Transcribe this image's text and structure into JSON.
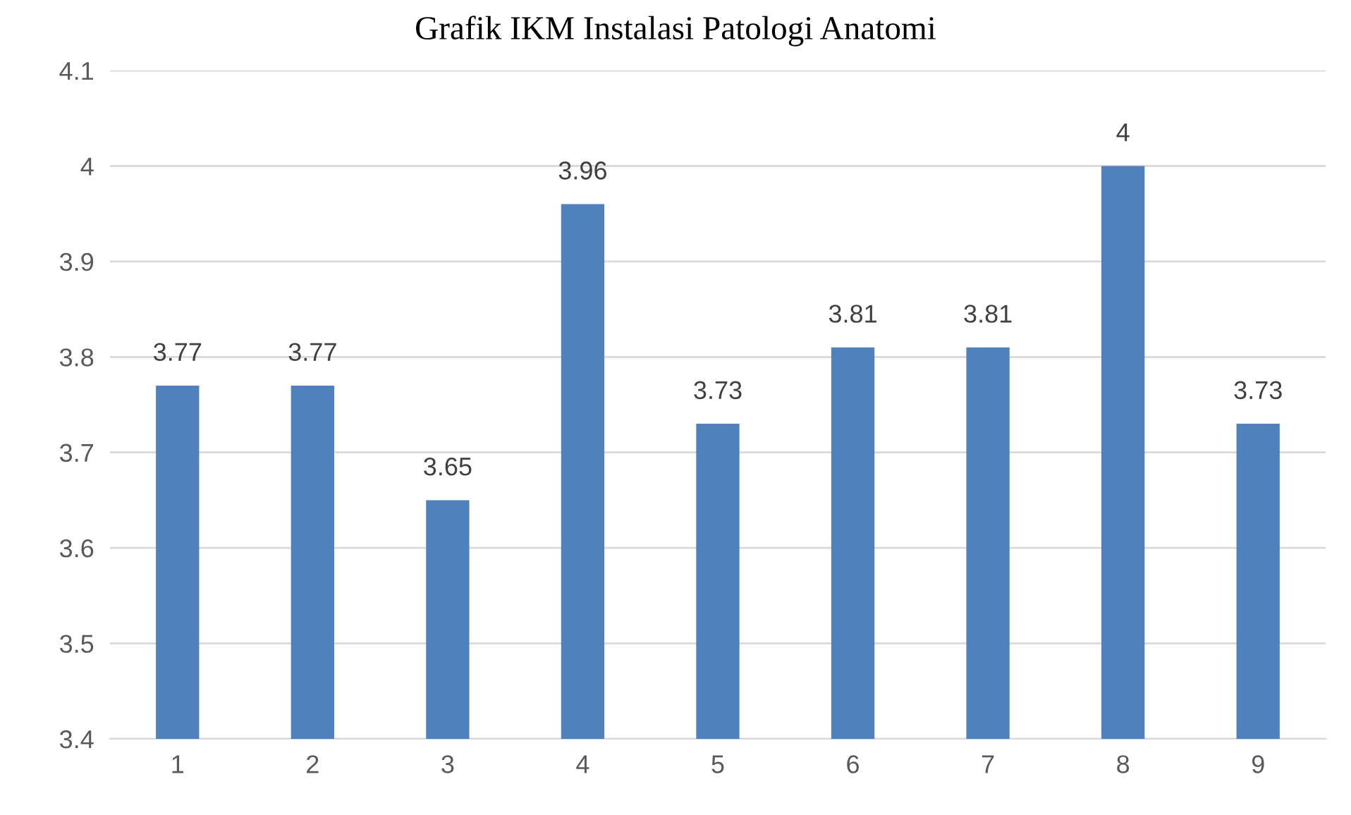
{
  "chart_data": {
    "type": "bar",
    "title": "Grafik IKM Instalasi Patologi Anatomi",
    "categories": [
      "1",
      "2",
      "3",
      "4",
      "5",
      "6",
      "7",
      "8",
      "9"
    ],
    "values": [
      3.77,
      3.77,
      3.65,
      3.96,
      3.73,
      3.81,
      3.81,
      4,
      3.73
    ],
    "color": "#4f81bd",
    "ylim": [
      3.4,
      4.1
    ],
    "yticks": [
      {
        "value": 3.4,
        "label": "3.4"
      },
      {
        "value": 3.5,
        "label": "3.5"
      },
      {
        "value": 3.6,
        "label": "3.6"
      },
      {
        "value": 3.7,
        "label": "3.7"
      },
      {
        "value": 3.8,
        "label": "3.8"
      },
      {
        "value": 3.9,
        "label": "3.9"
      },
      {
        "value": 4,
        "label": "4"
      },
      {
        "value": 4.1,
        "label": "4.1"
      }
    ],
    "grid": "y",
    "data_labels": true
  }
}
